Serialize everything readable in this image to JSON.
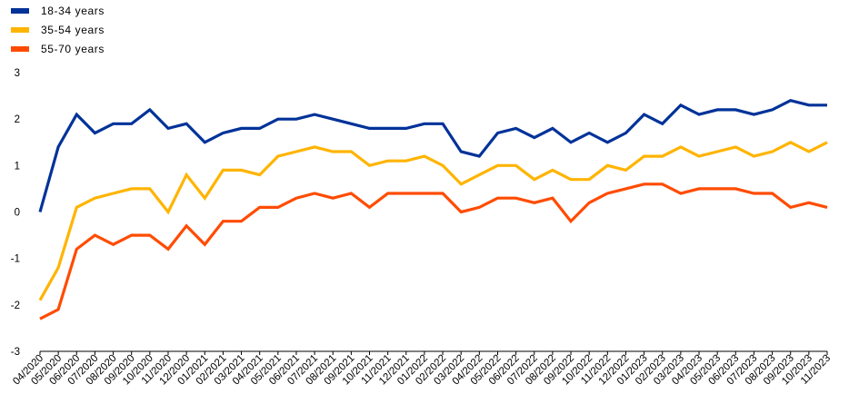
{
  "legend": [
    {
      "label": "18-34  years",
      "color": "#003299"
    },
    {
      "label": "35-54  years",
      "color": "#FFB400"
    },
    {
      "label": "55-70  years",
      "color": "#FF4B00"
    }
  ],
  "chart_data": {
    "type": "line",
    "title": "",
    "xlabel": "",
    "ylabel": "",
    "ylim": [
      -3,
      3
    ],
    "yticks": [
      -3,
      -2,
      -1,
      0,
      1,
      2,
      3
    ],
    "ytick_labels": [
      "-3",
      "-2",
      "-1",
      "0",
      "1",
      "2",
      "3"
    ],
    "grid": false,
    "legend_position": "top-left",
    "categories": [
      "04/2020",
      "05/2020",
      "06/2020",
      "07/2020",
      "08/2020",
      "09/2020",
      "10/2020",
      "11/2020",
      "12/2020",
      "01/2021",
      "02/2021",
      "03/2021",
      "04/2021",
      "05/2021",
      "06/2021",
      "07/2021",
      "08/2021",
      "09/2021",
      "10/2021",
      "11/2021",
      "12/2021",
      "01/2022",
      "02/2022",
      "03/2022",
      "04/2022",
      "05/2022",
      "06/2022",
      "07/2022",
      "08/2022",
      "09/2022",
      "10/2022",
      "11/2022",
      "12/2022",
      "01/2023",
      "02/2023",
      "03/2023",
      "04/2023",
      "05/2023",
      "06/2023",
      "07/2023",
      "08/2023",
      "09/2023",
      "10/2023",
      "11/2023"
    ],
    "series": [
      {
        "name": "18-34  years",
        "color": "#003299",
        "values": [
          0,
          1.4,
          2.1,
          1.7,
          1.9,
          1.9,
          2.2,
          1.8,
          1.9,
          1.5,
          1.7,
          1.8,
          1.8,
          2.0,
          2.0,
          2.1,
          2.0,
          1.9,
          1.8,
          1.8,
          1.8,
          1.9,
          1.9,
          1.3,
          1.2,
          1.7,
          1.8,
          1.6,
          1.8,
          1.5,
          1.7,
          1.5,
          1.7,
          2.1,
          1.9,
          2.3,
          2.1,
          2.2,
          2.2,
          2.1,
          2.2,
          2.4,
          2.3,
          2.3
        ]
      },
      {
        "name": "35-54  years",
        "color": "#FFB400",
        "values": [
          -1.9,
          -1.2,
          0.1,
          0.3,
          0.4,
          0.5,
          0.5,
          0.0,
          0.8,
          0.3,
          0.9,
          0.9,
          0.8,
          1.2,
          1.3,
          1.4,
          1.3,
          1.3,
          1.0,
          1.1,
          1.1,
          1.2,
          1.0,
          0.6,
          0.8,
          1.0,
          1.0,
          0.7,
          0.9,
          0.7,
          0.7,
          1.0,
          0.9,
          1.2,
          1.2,
          1.4,
          1.2,
          1.3,
          1.4,
          1.2,
          1.3,
          1.5,
          1.3,
          1.5
        ]
      },
      {
        "name": "55-70  years",
        "color": "#FF4B00",
        "values": [
          -2.3,
          -2.1,
          -0.8,
          -0.5,
          -0.7,
          -0.5,
          -0.5,
          -0.8,
          -0.3,
          -0.7,
          -0.2,
          -0.2,
          0.1,
          0.1,
          0.3,
          0.4,
          0.3,
          0.4,
          0.1,
          0.4,
          0.4,
          0.4,
          0.4,
          0.0,
          0.1,
          0.3,
          0.3,
          0.2,
          0.3,
          -0.2,
          0.2,
          0.4,
          0.5,
          0.6,
          0.6,
          0.4,
          0.5,
          0.5,
          0.5,
          0.4,
          0.4,
          0.1,
          0.2,
          0.1
        ]
      }
    ]
  }
}
